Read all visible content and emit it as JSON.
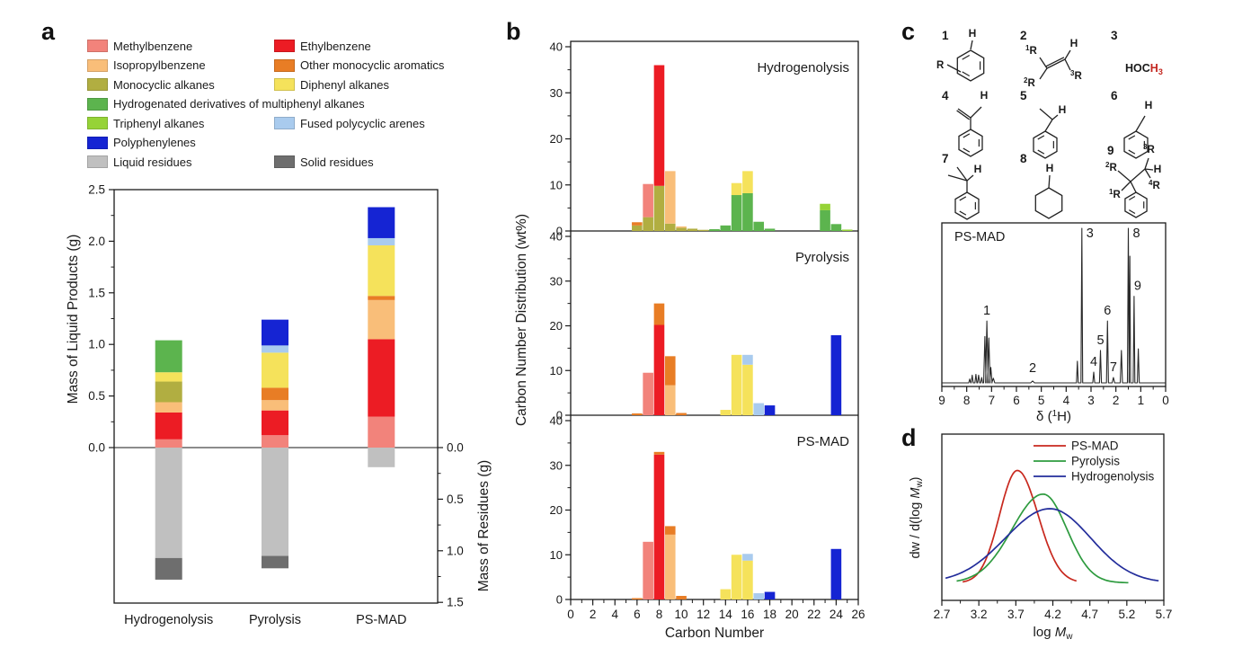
{
  "panels": {
    "letters": {
      "a": "a",
      "b": "b",
      "c": "c",
      "d": "d"
    }
  },
  "palette": {
    "methylbenzene": "#F2837B",
    "ethylbenzene": "#EC1C24",
    "isopropylbenzene": "#F9BE79",
    "other_monocyclic": "#E87D25",
    "monocyclic_alkanes": "#B1AE41",
    "diphenyl_alkanes": "#F5E25B",
    "hydrogenated_derivatives": "#5CB44E",
    "triphenyl_alkanes": "#96D337",
    "fused_polycyclic": "#A9CBEE",
    "polyphenylenes": "#1524D3",
    "liquid_residues": "#C0C0C0",
    "solid_residues": "#6E6E6E"
  },
  "legend_a": [
    {
      "label": "Methylbenzene",
      "key": "methylbenzene",
      "row": 0,
      "col": 0
    },
    {
      "label": "Ethylbenzene",
      "key": "ethylbenzene",
      "row": 0,
      "col": 1
    },
    {
      "label": "Isopropylbenzene",
      "key": "isopropylbenzene",
      "row": 1,
      "col": 0
    },
    {
      "label": "Other monocyclic aromatics",
      "key": "other_monocyclic",
      "row": 1,
      "col": 1
    },
    {
      "label": "Monocyclic alkanes",
      "key": "monocyclic_alkanes",
      "row": 2,
      "col": 0
    },
    {
      "label": "Diphenyl alkanes",
      "key": "diphenyl_alkanes",
      "row": 2,
      "col": 1
    },
    {
      "label": "Hydrogenated derivatives of multiphenyl alkanes",
      "key": "hydrogenated_derivatives",
      "row": 3,
      "col": 0
    },
    {
      "label": "Triphenyl alkanes",
      "key": "triphenyl_alkanes",
      "row": 4,
      "col": 0
    },
    {
      "label": "Fused polycyclic arenes",
      "key": "fused_polycyclic",
      "row": 4,
      "col": 1
    },
    {
      "label": "Polyphenylenes",
      "key": "polyphenylenes",
      "row": 5,
      "col": 0
    },
    {
      "label": "Liquid residues",
      "key": "liquid_residues",
      "row": 6,
      "col": 0
    },
    {
      "label": "Solid residues",
      "key": "solid_residues",
      "row": 6,
      "col": 1
    }
  ],
  "structures": [
    {
      "num": "1",
      "h": "H",
      "r_plain": "R"
    },
    {
      "num": "2",
      "h": "H",
      "r1": "R",
      "r2": "R",
      "r3": "R"
    },
    {
      "num": "3",
      "formula_black": "HOC",
      "formula_red": "H",
      "formula_sub": "3"
    },
    {
      "num": "4",
      "h": "H"
    },
    {
      "num": "5",
      "h": "H"
    },
    {
      "num": "6",
      "h": "H"
    },
    {
      "num": "7",
      "h": "H"
    },
    {
      "num": "8",
      "h": "H"
    },
    {
      "num": "9",
      "h": "H",
      "r1": "R",
      "r2": "R",
      "r3": "R",
      "r4": "R"
    }
  ],
  "chart_data": [
    {
      "id": "a",
      "type": "bar",
      "stacked": true,
      "categories": [
        "Hydrogenolysis",
        "Pyrolysis",
        "PS-MAD"
      ],
      "ylabel_left": "Mass of Liquid Products (g)",
      "ylabel_right": "Mass of Residues (g)",
      "ylim_products": [
        0,
        2.5
      ],
      "ylim_residues": [
        0,
        1.5
      ],
      "yticks_products": [
        "0.0",
        "0.5",
        "1.0",
        "1.5",
        "2.0",
        "2.5"
      ],
      "yticks_residues": [
        "0.0",
        "0.5",
        "1.0",
        "1.5"
      ],
      "products_series": [
        {
          "name": "Methylbenzene",
          "key": "methylbenzene",
          "values": [
            0.08,
            0.12,
            0.3
          ]
        },
        {
          "name": "Ethylbenzene",
          "key": "ethylbenzene",
          "values": [
            0.26,
            0.24,
            0.75
          ]
        },
        {
          "name": "Isopropylbenzene",
          "key": "isopropylbenzene",
          "values": [
            0.1,
            0.1,
            0.38
          ]
        },
        {
          "name": "Other monocyclic aromatics",
          "key": "other_monocyclic",
          "values": [
            0,
            0.12,
            0.04
          ]
        },
        {
          "name": "Monocyclic alkanes",
          "key": "monocyclic_alkanes",
          "values": [
            0.2,
            0,
            0
          ]
        },
        {
          "name": "Diphenyl alkanes",
          "key": "diphenyl_alkanes",
          "values": [
            0.09,
            0.34,
            0.49
          ]
        },
        {
          "name": "Hydrogenated derivatives of multiphenyl alkanes",
          "key": "hydrogenated_derivatives",
          "values": [
            0.31,
            0,
            0
          ]
        },
        {
          "name": "Triphenyl alkanes",
          "key": "triphenyl_alkanes",
          "values": [
            0,
            0,
            0
          ]
        },
        {
          "name": "Fused polycyclic arenes",
          "key": "fused_polycyclic",
          "values": [
            0,
            0.07,
            0.07
          ]
        },
        {
          "name": "Polyphenylenes",
          "key": "polyphenylenes",
          "values": [
            0,
            0.25,
            0.3
          ]
        }
      ],
      "residues_series": [
        {
          "name": "Liquid residues",
          "key": "liquid_residues",
          "values": [
            1.07,
            1.05,
            0.19
          ]
        },
        {
          "name": "Solid residues",
          "key": "solid_residues",
          "values": [
            0.21,
            0.12,
            0
          ]
        }
      ]
    },
    {
      "id": "b",
      "type": "bar",
      "stacked": true,
      "xlabel": "Carbon Number",
      "ylabel": "Carbon Number Distribution (wt%)",
      "xlim": [
        0,
        26
      ],
      "xticks": [
        0,
        2,
        4,
        6,
        8,
        10,
        12,
        14,
        16,
        18,
        20,
        22,
        24,
        26
      ],
      "ylim": [
        0,
        40
      ],
      "yticks": [
        0,
        10,
        20,
        30,
        40
      ],
      "subplots": [
        {
          "title": "Hydrogenolysis",
          "bars": [
            {
              "c": 6,
              "segments": [
                [
                  "monocyclic_alkanes",
                  1.2
                ],
                [
                  "other_monocyclic",
                  0.7
                ]
              ]
            },
            {
              "c": 7,
              "segments": [
                [
                  "monocyclic_alkanes",
                  3.0
                ],
                [
                  "methylbenzene",
                  7.2
                ]
              ]
            },
            {
              "c": 8,
              "segments": [
                [
                  "monocyclic_alkanes",
                  9.8
                ],
                [
                  "ethylbenzene",
                  26.2
                ]
              ]
            },
            {
              "c": 9,
              "segments": [
                [
                  "monocyclic_alkanes",
                  1.6
                ],
                [
                  "isopropylbenzene",
                  11.4
                ]
              ]
            },
            {
              "c": 10,
              "segments": [
                [
                  "monocyclic_alkanes",
                  0.7
                ],
                [
                  "isopropylbenzene",
                  0.3
                ]
              ]
            },
            {
              "c": 11,
              "segments": [
                [
                  "monocyclic_alkanes",
                  0.5
                ]
              ]
            },
            {
              "c": 12,
              "segments": [
                [
                  "monocyclic_alkanes",
                  0.25
                ]
              ]
            },
            {
              "c": 13,
              "segments": [
                [
                  "hydrogenated_derivatives",
                  0.4
                ]
              ]
            },
            {
              "c": 14,
              "segments": [
                [
                  "hydrogenated_derivatives",
                  1.2
                ]
              ]
            },
            {
              "c": 15,
              "segments": [
                [
                  "hydrogenated_derivatives",
                  7.8
                ],
                [
                  "diphenyl_alkanes",
                  2.6
                ]
              ]
            },
            {
              "c": 16,
              "segments": [
                [
                  "hydrogenated_derivatives",
                  8.2
                ],
                [
                  "diphenyl_alkanes",
                  4.8
                ]
              ]
            },
            {
              "c": 17,
              "segments": [
                [
                  "hydrogenated_derivatives",
                  2.0
                ]
              ]
            },
            {
              "c": 18,
              "segments": [
                [
                  "hydrogenated_derivatives",
                  0.5
                ]
              ]
            },
            {
              "c": 23,
              "segments": [
                [
                  "hydrogenated_derivatives",
                  4.5
                ],
                [
                  "triphenyl_alkanes",
                  1.4
                ]
              ]
            },
            {
              "c": 24,
              "segments": [
                [
                  "hydrogenated_derivatives",
                  1.5
                ]
              ]
            },
            {
              "c": 25,
              "segments": [
                [
                  "triphenyl_alkanes",
                  0.3
                ]
              ]
            }
          ]
        },
        {
          "title": "Pyrolysis",
          "bars": [
            {
              "c": 6,
              "segments": [
                [
                  "other_monocyclic",
                  0.4
                ]
              ]
            },
            {
              "c": 7,
              "segments": [
                [
                  "methylbenzene",
                  9.5
                ]
              ]
            },
            {
              "c": 8,
              "segments": [
                [
                  "ethylbenzene",
                  20.2
                ],
                [
                  "other_monocyclic",
                  4.8
                ]
              ]
            },
            {
              "c": 9,
              "segments": [
                [
                  "isopropylbenzene",
                  6.7
                ],
                [
                  "other_monocyclic",
                  6.5
                ]
              ]
            },
            {
              "c": 10,
              "segments": [
                [
                  "other_monocyclic",
                  0.5
                ]
              ]
            },
            {
              "c": 14,
              "segments": [
                [
                  "diphenyl_alkanes",
                  1.2
                ]
              ]
            },
            {
              "c": 15,
              "segments": [
                [
                  "diphenyl_alkanes",
                  13.5
                ]
              ]
            },
            {
              "c": 16,
              "segments": [
                [
                  "diphenyl_alkanes",
                  11.3
                ],
                [
                  "fused_polycyclic",
                  2.2
                ]
              ]
            },
            {
              "c": 17,
              "segments": [
                [
                  "fused_polycyclic",
                  2.7
                ]
              ]
            },
            {
              "c": 18,
              "segments": [
                [
                  "polyphenylenes",
                  2.2
                ]
              ]
            },
            {
              "c": 24,
              "segments": [
                [
                  "polyphenylenes",
                  17.9
                ]
              ]
            }
          ]
        },
        {
          "title": "PS-MAD",
          "bars": [
            {
              "c": 6,
              "segments": [
                [
                  "other_monocyclic",
                  0.3
                ]
              ]
            },
            {
              "c": 7,
              "segments": [
                [
                  "methylbenzene",
                  12.9
                ]
              ]
            },
            {
              "c": 8,
              "segments": [
                [
                  "ethylbenzene",
                  32.4
                ],
                [
                  "other_monocyclic",
                  0.6
                ]
              ]
            },
            {
              "c": 9,
              "segments": [
                [
                  "isopropylbenzene",
                  14.5
                ],
                [
                  "other_monocyclic",
                  1.9
                ]
              ]
            },
            {
              "c": 10,
              "segments": [
                [
                  "other_monocyclic",
                  0.8
                ]
              ]
            },
            {
              "c": 14,
              "segments": [
                [
                  "diphenyl_alkanes",
                  2.3
                ]
              ]
            },
            {
              "c": 15,
              "segments": [
                [
                  "diphenyl_alkanes",
                  10.0
                ]
              ]
            },
            {
              "c": 16,
              "segments": [
                [
                  "diphenyl_alkanes",
                  8.7
                ],
                [
                  "fused_polycyclic",
                  1.5
                ]
              ]
            },
            {
              "c": 17,
              "segments": [
                [
                  "fused_polycyclic",
                  1.4
                ]
              ]
            },
            {
              "c": 18,
              "segments": [
                [
                  "polyphenylenes",
                  1.7
                ]
              ]
            },
            {
              "c": 24,
              "segments": [
                [
                  "polyphenylenes",
                  11.3
                ]
              ]
            }
          ]
        }
      ]
    },
    {
      "id": "c_nmr",
      "type": "line",
      "title": "PS-MAD",
      "xlabel_parts": {
        "prefix": "δ (",
        "sup": "1",
        "suffix": "H)"
      },
      "x_range": [
        9,
        0
      ],
      "xticks": [
        "9",
        "8",
        "7",
        "6",
        "5",
        "4",
        "3",
        "2",
        "1",
        "0"
      ],
      "peaks": [
        {
          "ppm": 7.88,
          "h": 0.025
        },
        {
          "ppm": 7.78,
          "h": 0.05
        },
        {
          "ppm": 7.63,
          "h": 0.055
        },
        {
          "ppm": 7.52,
          "h": 0.05
        },
        {
          "ppm": 7.4,
          "h": 0.035
        },
        {
          "ppm": 7.27,
          "h": 0.3,
          "w": 0.05
        },
        {
          "ppm": 7.19,
          "h": 0.4,
          "w": 0.05,
          "label": "1"
        },
        {
          "ppm": 7.11,
          "h": 0.29,
          "w": 0.05
        },
        {
          "ppm": 7.03,
          "h": 0.1,
          "w": 0.05
        },
        {
          "ppm": 6.93,
          "h": 0.03,
          "w": 0.06
        },
        {
          "ppm": 5.35,
          "h": 0.012,
          "w": 0.08,
          "label": "2"
        },
        {
          "ppm": 3.55,
          "h": 0.14,
          "w": 0.035
        },
        {
          "ppm": 3.37,
          "h": 1.0,
          "w": 0.035,
          "label": "3"
        },
        {
          "ppm": 2.89,
          "h": 0.07,
          "w": 0.04,
          "label": "4"
        },
        {
          "ppm": 2.62,
          "h": 0.21,
          "w": 0.04,
          "label": "5"
        },
        {
          "ppm": 2.34,
          "h": 0.4,
          "w": 0.04,
          "label": "6"
        },
        {
          "ppm": 2.1,
          "h": 0.035,
          "w": 0.05,
          "label": "7"
        },
        {
          "ppm": 1.78,
          "h": 0.21,
          "w": 0.045
        },
        {
          "ppm": 1.5,
          "h": 1.0,
          "w": 0.035,
          "label": "8"
        },
        {
          "ppm": 1.44,
          "h": 0.82,
          "w": 0.03
        },
        {
          "ppm": 1.27,
          "h": 0.56,
          "w": 0.035,
          "label": "9"
        },
        {
          "ppm": 1.1,
          "h": 0.22,
          "w": 0.04
        }
      ]
    },
    {
      "id": "d",
      "type": "line",
      "xlabel_parts": {
        "prefix": "log ",
        "italic": "M",
        "sub": "w",
        "suffix": ""
      },
      "ylabel_parts": {
        "prefix": "dw / d(log ",
        "italic": "M",
        "sub": "w",
        "suffix": ")"
      },
      "xticks": [
        "2.7",
        "3.2",
        "3.7",
        "4.2",
        "4.7",
        "5.2",
        "5.7"
      ],
      "xlim": [
        2.7,
        5.7
      ],
      "legend_position": "top-center",
      "series": [
        {
          "name": "PS-MAD",
          "color": "#C8281E",
          "peak": 3.72,
          "amp": 1.0,
          "sigma_left": 0.24,
          "sigma_right": 0.28,
          "x_start": 2.98,
          "x_end": 4.52
        },
        {
          "name": "Pyrolysis",
          "color": "#2E9B3F",
          "peak": 4.07,
          "amp": 0.79,
          "sigma_left": 0.42,
          "sigma_right": 0.32,
          "x_start": 2.9,
          "x_end": 5.22
        },
        {
          "name": "Hydrogenolysis",
          "color": "#232D9B",
          "peak": 4.16,
          "amp": 0.66,
          "sigma_left": 0.6,
          "sigma_right": 0.55,
          "x_start": 2.75,
          "x_end": 5.63
        }
      ]
    }
  ]
}
